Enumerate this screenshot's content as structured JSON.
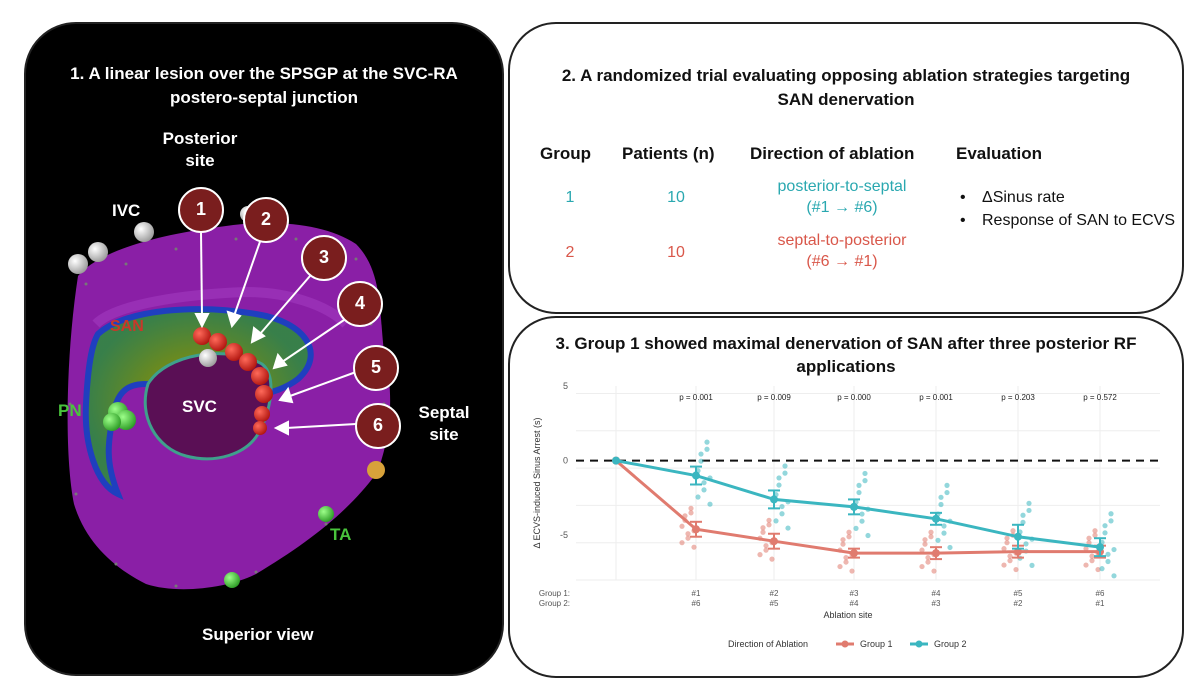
{
  "panel1": {
    "title": "1. A linear lesion over the SPSGP at the SVC-RA postero-septal junction",
    "labels": {
      "posterior_site": "Posterior site",
      "ivc": "IVC",
      "san": "SAN",
      "pn": "PN",
      "svc": "SVC",
      "septal_site": "Septal site",
      "ta": "TA",
      "superior_view": "Superior view"
    },
    "markers": [
      "1",
      "2",
      "3",
      "4",
      "5",
      "6"
    ],
    "colors": {
      "marker_fill": "#7a1e1e",
      "atrium": "#8a1fa6",
      "activation_green": "#3fbf3a"
    }
  },
  "panel2": {
    "title": "2. A randomized trial evaluating opposing ablation strategies targeting SAN denervation",
    "headers": [
      "Group",
      "Patients (n)",
      "Direction of ablation",
      "Evaluation"
    ],
    "rows": [
      {
        "group": "1",
        "patients": "10",
        "direction": "posterior-to-septal",
        "sequence": "(#1 → #6)",
        "color": "#2aa8b0"
      },
      {
        "group": "2",
        "patients": "10",
        "direction": "septal-to-posterior",
        "sequence": "(#6 → #1)",
        "color": "#d9574a"
      }
    ],
    "evaluation": [
      "ΔSinus rate",
      "Response of SAN to ECVS"
    ]
  },
  "panel3": {
    "title": "3. Group 1 showed maximal denervation of SAN after three posterior RF applications"
  },
  "chart_data": {
    "type": "line",
    "ylabel": "Δ ECVS-induced Sinus Arrest (s)",
    "xlabel": "Ablation site",
    "ylim": [
      -8,
      5
    ],
    "yticks": [
      5,
      0,
      -5
    ],
    "reference_line": 0,
    "x_rows": {
      "group1_label": "Group 1:",
      "group2_label": "Group 2:",
      "group1_sites": [
        "#1",
        "#2",
        "#3",
        "#4",
        "#5",
        "#6"
      ],
      "group2_sites": [
        "#6",
        "#5",
        "#4",
        "#3",
        "#2",
        "#1"
      ]
    },
    "p_values": [
      "p = 0.001",
      "p = 0.009",
      "p = 0.000",
      "p = 0.001",
      "p = 0.203",
      "p = 0.572"
    ],
    "legend": {
      "title": "Direction of Ablation",
      "placement": "bottom"
    },
    "series": [
      {
        "name": "Group 1",
        "color": "#e07b6f",
        "values": [
          0,
          -4.6,
          -5.4,
          -6.2,
          -6.2,
          -6.1,
          -6.1
        ],
        "error": [
          0,
          0.5,
          0.5,
          0.3,
          0.4,
          0.4,
          0.4
        ]
      },
      {
        "name": "Group 2",
        "color": "#3bb6c0",
        "values": [
          0,
          -1.0,
          -2.6,
          -3.1,
          -3.9,
          -5.1,
          -5.8
        ],
        "error": [
          0,
          0.6,
          0.6,
          0.5,
          0.4,
          0.8,
          0.6
        ]
      }
    ]
  }
}
